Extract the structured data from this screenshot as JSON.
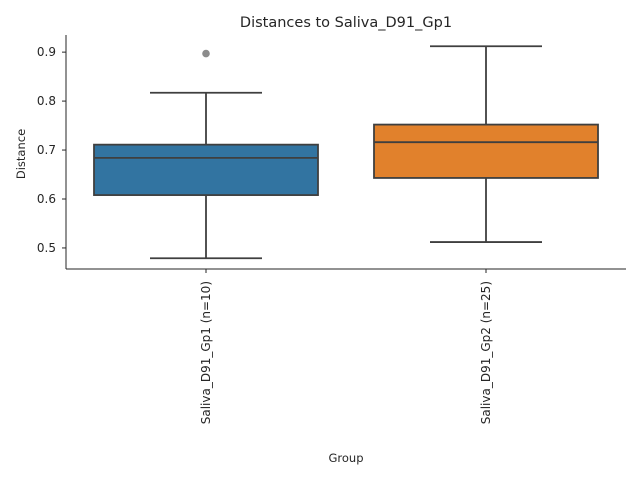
{
  "chart_data": {
    "type": "box",
    "title": "Distances to Saliva_D91_Gp1",
    "xlabel": "Group",
    "ylabel": "Distance",
    "ylim": [
      0.457,
      0.935
    ],
    "yticks": [
      0.5,
      0.6,
      0.7,
      0.8,
      0.9
    ],
    "ytick_labels": [
      "0.5",
      "0.6",
      "0.7",
      "0.8",
      "0.9"
    ],
    "grid": false,
    "categories": [
      "Saliva_D91_Gp1 (n=10)",
      "Saliva_D91_Gp2 (n=25)"
    ],
    "boxes": [
      {
        "category": "Saliva_D91_Gp1 (n=10)",
        "color": "#3274a1",
        "whisker_low": 0.479,
        "q1": 0.608,
        "median": 0.684,
        "q3": 0.711,
        "whisker_high": 0.817,
        "outliers": [
          0.897
        ]
      },
      {
        "category": "Saliva_D91_Gp2 (n=25)",
        "color": "#e1812c",
        "whisker_low": 0.512,
        "q1": 0.643,
        "median": 0.716,
        "q3": 0.752,
        "whisker_high": 0.912,
        "outliers": []
      }
    ]
  }
}
